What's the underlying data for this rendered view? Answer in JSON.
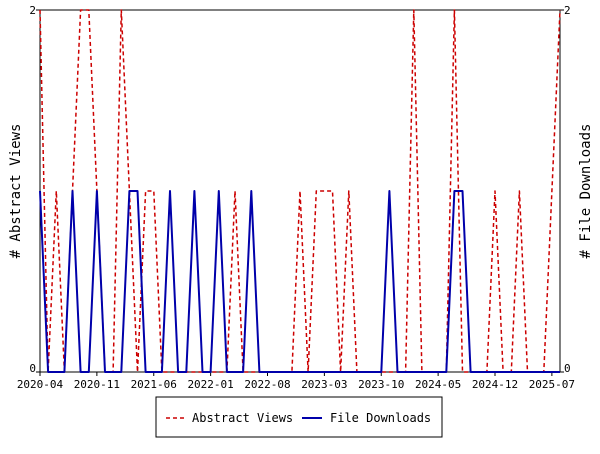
{
  "chart_data": {
    "type": "line",
    "title": "",
    "xlabel": "",
    "ylabel_left": "# Abstract Views",
    "ylabel_right": "# File Downloads",
    "ylim": [
      0,
      2
    ],
    "y_ticks_left": [
      "0",
      "2"
    ],
    "y_ticks_right": [
      "0",
      "2"
    ],
    "x_ticks": [
      {
        "label": "2020-04",
        "x": "2020-04"
      },
      {
        "label": "2020-11",
        "x": "2020-11"
      },
      {
        "label": "2021-06",
        "x": "2021-06"
      },
      {
        "label": "2022-01",
        "x": "2022-01"
      },
      {
        "label": "2022-08",
        "x": "2022-08"
      },
      {
        "label": "2023-03",
        "x": "2023-03"
      },
      {
        "label": "2023-10",
        "x": "2023-10"
      },
      {
        "label": "2024-05",
        "x": "2024-05"
      },
      {
        "label": "2024-12",
        "x": "2024-12"
      },
      {
        "label": "2025-07",
        "x": "2025-07"
      }
    ],
    "xlim": [
      "2020-04",
      "2025-08"
    ],
    "grid": false,
    "legend_position": "bottom",
    "series": [
      {
        "name": "Abstract Views",
        "color": "#cc0000",
        "style": "dashed",
        "points": [
          [
            "2020-04",
            2
          ],
          [
            "2020-05",
            0
          ],
          [
            "2020-06",
            1
          ],
          [
            "2020-07",
            0
          ],
          [
            "2020-08",
            1
          ],
          [
            "2020-09",
            2
          ],
          [
            "2020-10",
            2
          ],
          [
            "2020-11",
            1
          ],
          [
            "2020-12",
            0
          ],
          [
            "2021-01",
            0
          ],
          [
            "2021-02",
            2
          ],
          [
            "2021-03",
            1
          ],
          [
            "2021-04",
            0
          ],
          [
            "2021-05",
            1
          ],
          [
            "2021-06",
            1
          ],
          [
            "2021-07",
            0
          ],
          [
            "2021-08",
            0
          ],
          [
            "2021-09",
            0
          ],
          [
            "2021-10",
            0
          ],
          [
            "2021-11",
            0
          ],
          [
            "2021-12",
            0
          ],
          [
            "2022-01",
            0
          ],
          [
            "2022-02",
            0
          ],
          [
            "2022-03",
            0
          ],
          [
            "2022-04",
            1
          ],
          [
            "2022-05",
            0
          ],
          [
            "2022-06",
            0
          ],
          [
            "2022-07",
            0
          ],
          [
            "2022-08",
            0
          ],
          [
            "2022-09",
            0
          ],
          [
            "2022-10",
            0
          ],
          [
            "2022-11",
            0
          ],
          [
            "2022-12",
            1
          ],
          [
            "2023-01",
            0
          ],
          [
            "2023-02",
            1
          ],
          [
            "2023-03",
            1
          ],
          [
            "2023-04",
            1
          ],
          [
            "2023-05",
            0
          ],
          [
            "2023-06",
            1
          ],
          [
            "2023-07",
            0
          ],
          [
            "2023-08",
            0
          ],
          [
            "2023-09",
            0
          ],
          [
            "2023-10",
            0
          ],
          [
            "2023-11",
            0
          ],
          [
            "2023-12",
            0
          ],
          [
            "2024-01",
            0
          ],
          [
            "2024-02",
            2
          ],
          [
            "2024-03",
            0
          ],
          [
            "2024-04",
            0
          ],
          [
            "2024-05",
            0
          ],
          [
            "2024-06",
            0
          ],
          [
            "2024-07",
            2
          ],
          [
            "2024-08",
            0
          ],
          [
            "2024-09",
            0
          ],
          [
            "2024-10",
            0
          ],
          [
            "2024-11",
            0
          ],
          [
            "2024-12",
            1
          ],
          [
            "2025-01",
            0
          ],
          [
            "2025-02",
            0
          ],
          [
            "2025-03",
            1
          ],
          [
            "2025-04",
            0
          ],
          [
            "2025-05",
            0
          ],
          [
            "2025-06",
            0
          ],
          [
            "2025-07",
            1
          ],
          [
            "2025-08",
            2
          ]
        ]
      },
      {
        "name": "File Downloads",
        "color": "#0000aa",
        "style": "solid",
        "points": [
          [
            "2020-04",
            1
          ],
          [
            "2020-05",
            0
          ],
          [
            "2020-06",
            0
          ],
          [
            "2020-07",
            0
          ],
          [
            "2020-08",
            1
          ],
          [
            "2020-09",
            0
          ],
          [
            "2020-10",
            0
          ],
          [
            "2020-11",
            1
          ],
          [
            "2020-12",
            0
          ],
          [
            "2021-01",
            0
          ],
          [
            "2021-02",
            0
          ],
          [
            "2021-03",
            1
          ],
          [
            "2021-04",
            1
          ],
          [
            "2021-05",
            0
          ],
          [
            "2021-06",
            0
          ],
          [
            "2021-07",
            0
          ],
          [
            "2021-08",
            1
          ],
          [
            "2021-09",
            0
          ],
          [
            "2021-10",
            0
          ],
          [
            "2021-11",
            1
          ],
          [
            "2021-12",
            0
          ],
          [
            "2022-01",
            0
          ],
          [
            "2022-02",
            1
          ],
          [
            "2022-03",
            0
          ],
          [
            "2022-04",
            0
          ],
          [
            "2022-05",
            0
          ],
          [
            "2022-06",
            1
          ],
          [
            "2022-07",
            0
          ],
          [
            "2022-08",
            0
          ],
          [
            "2022-09",
            0
          ],
          [
            "2022-10",
            0
          ],
          [
            "2022-11",
            0
          ],
          [
            "2022-12",
            0
          ],
          [
            "2023-01",
            0
          ],
          [
            "2023-02",
            0
          ],
          [
            "2023-03",
            0
          ],
          [
            "2023-04",
            0
          ],
          [
            "2023-05",
            0
          ],
          [
            "2023-06",
            0
          ],
          [
            "2023-07",
            0
          ],
          [
            "2023-08",
            0
          ],
          [
            "2023-09",
            0
          ],
          [
            "2023-10",
            0
          ],
          [
            "2023-11",
            1
          ],
          [
            "2023-12",
            0
          ],
          [
            "2024-01",
            0
          ],
          [
            "2024-02",
            0
          ],
          [
            "2024-03",
            0
          ],
          [
            "2024-04",
            0
          ],
          [
            "2024-05",
            0
          ],
          [
            "2024-06",
            0
          ],
          [
            "2024-07",
            1
          ],
          [
            "2024-08",
            1
          ],
          [
            "2024-09",
            0
          ],
          [
            "2024-10",
            0
          ],
          [
            "2024-11",
            0
          ],
          [
            "2024-12",
            0
          ],
          [
            "2025-01",
            0
          ],
          [
            "2025-02",
            0
          ],
          [
            "2025-03",
            0
          ],
          [
            "2025-04",
            0
          ],
          [
            "2025-05",
            0
          ],
          [
            "2025-06",
            0
          ],
          [
            "2025-07",
            0
          ],
          [
            "2025-08",
            0
          ]
        ]
      }
    ]
  }
}
